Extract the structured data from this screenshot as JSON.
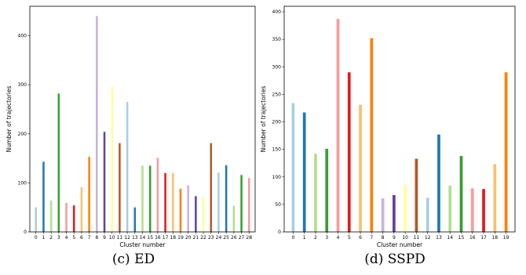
{
  "captions": [
    "(c) ED",
    "(d) SSPD"
  ],
  "chart_data": [
    {
      "type": "bar",
      "xlabel": "Cluster number",
      "ylabel": "Number of trajectories",
      "ylim": [
        0,
        460
      ],
      "yticks": [
        0,
        100,
        200,
        300,
        400
      ],
      "categories": [
        "0",
        "1",
        "2",
        "3",
        "4",
        "5",
        "6",
        "7",
        "8",
        "9",
        "10",
        "11",
        "12",
        "13",
        "14",
        "15",
        "16",
        "17",
        "18",
        "19",
        "20",
        "21",
        "22",
        "23",
        "24",
        "25",
        "26",
        "27",
        "28"
      ],
      "values": [
        50,
        143,
        64,
        282,
        59,
        54,
        91,
        153,
        440,
        204,
        296,
        181,
        265,
        50,
        135,
        135,
        151,
        120,
        120,
        88,
        95,
        73,
        72,
        181,
        121,
        136,
        53,
        116,
        110
      ],
      "colors": [
        "#a6cee3",
        "#1f78b4",
        "#b2df8a",
        "#33a02c",
        "#fb9a99",
        "#e31a1c",
        "#fdbf6f",
        "#ff7f00",
        "#cab2d6",
        "#6a3d9a",
        "#ffff99",
        "#b15928",
        "#a6cee3",
        "#1f78b4",
        "#b2df8a",
        "#33a02c",
        "#fb9a99",
        "#e31a1c",
        "#fdbf6f",
        "#ff7f00",
        "#cab2d6",
        "#6a3d9a",
        "#ffff99",
        "#b15928",
        "#a6cee3",
        "#1f78b4",
        "#b2df8a",
        "#33a02c",
        "#fb9a99"
      ]
    },
    {
      "type": "bar",
      "xlabel": "Cluster number",
      "ylabel": "Number of trajectories",
      "ylim": [
        0,
        410
      ],
      "yticks": [
        0,
        50,
        100,
        150,
        200,
        250,
        300,
        350,
        400
      ],
      "categories": [
        "0",
        "1",
        "2",
        "3",
        "4",
        "5",
        "6",
        "7",
        "8",
        "9",
        "10",
        "11",
        "12",
        "13",
        "14",
        "15",
        "16",
        "17",
        "18",
        "19"
      ],
      "values": [
        234,
        217,
        142,
        151,
        387,
        290,
        231,
        352,
        61,
        67,
        85,
        133,
        62,
        177,
        84,
        138,
        79,
        78,
        123,
        290
      ],
      "colors": [
        "#a6cee3",
        "#1f78b4",
        "#b2df8a",
        "#33a02c",
        "#fb9a99",
        "#e31a1c",
        "#fdbf6f",
        "#ff7f00",
        "#cab2d6",
        "#6a3d9a",
        "#ffff99",
        "#b15928",
        "#a6cee3",
        "#1f78b4",
        "#b2df8a",
        "#33a02c",
        "#fb9a99",
        "#e31a1c",
        "#fdbf6f",
        "#ff7f00"
      ]
    }
  ]
}
